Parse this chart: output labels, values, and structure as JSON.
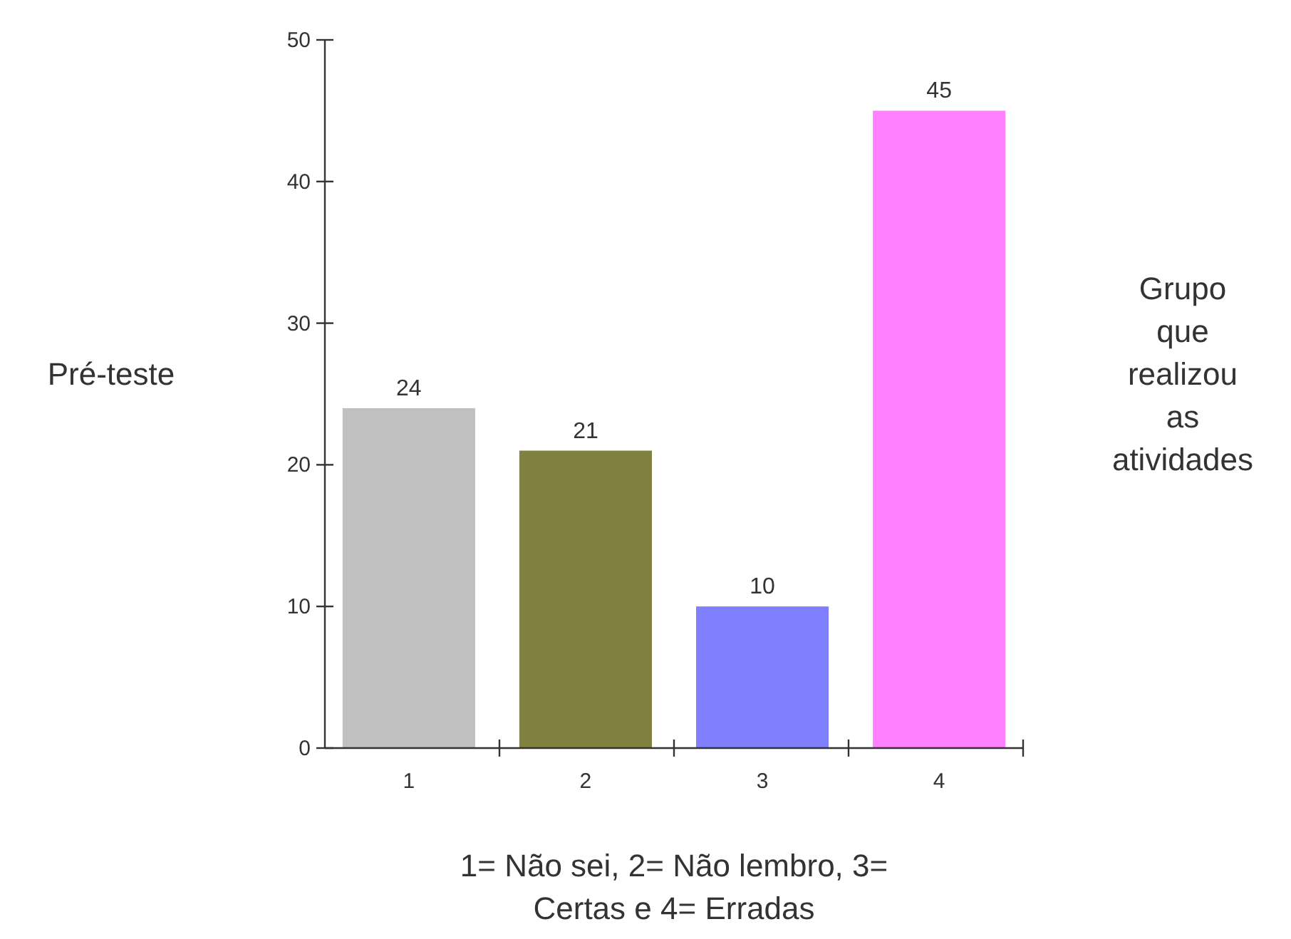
{
  "chart_data": {
    "type": "bar",
    "ylabel": "Pré-teste",
    "xlabel": "1= Não sei, 2= Não lembro, 3= Certas e 4= Erradas",
    "annotations": [
      "Grupo que realizou as atividades"
    ],
    "categories": [
      "1",
      "2",
      "3",
      "4"
    ],
    "values": [
      24,
      21,
      10,
      45
    ],
    "colors": [
      "#c0c0c0",
      "#808040",
      "#8080ff",
      "#ff80ff"
    ],
    "ylim": [
      0,
      50
    ],
    "yticks": [
      0,
      10,
      20,
      30,
      40,
      50
    ],
    "data_labels": true,
    "grid": false
  }
}
